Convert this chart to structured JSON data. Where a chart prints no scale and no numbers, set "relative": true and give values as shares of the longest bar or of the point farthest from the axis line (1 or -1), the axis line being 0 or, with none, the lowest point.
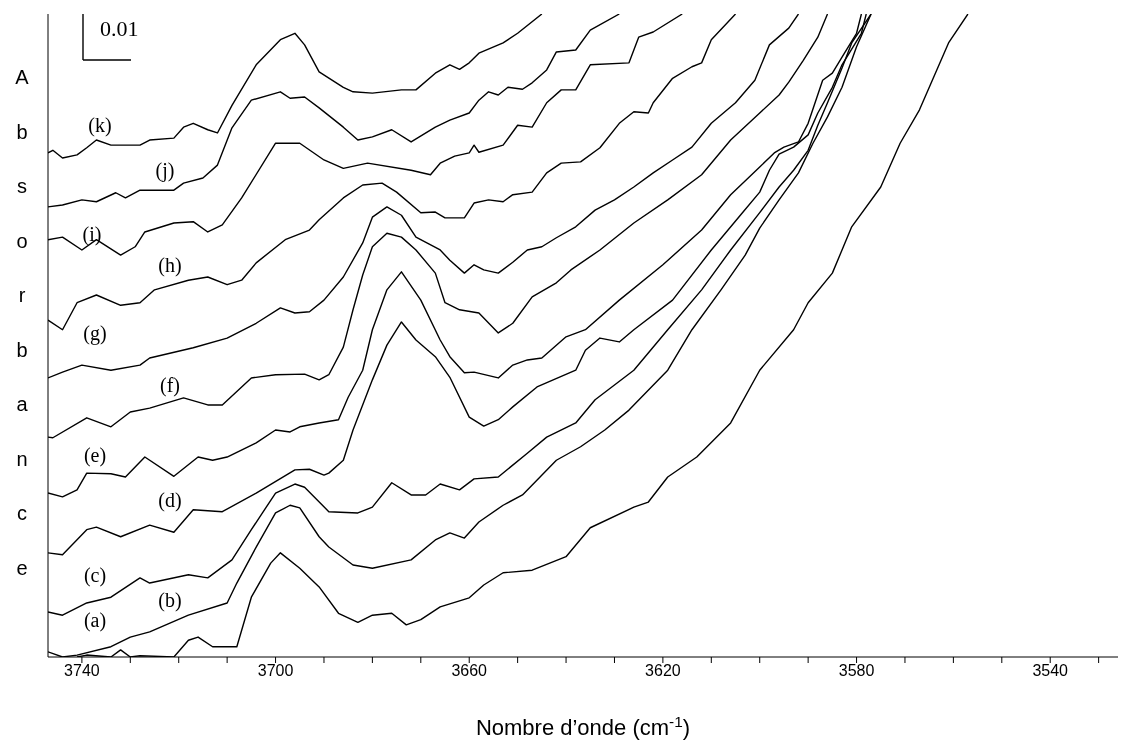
{
  "chart_data": {
    "type": "line",
    "relative": true,
    "xlabel": "Nombre d’onde (cm$^{-1}$)",
    "ylabel": "Absorbance",
    "xlim": [
      3747,
      3526
    ],
    "xticks": [
      3740,
      {
        "value": 3730,
        "label": null
      },
      {
        "value": 3720,
        "label": null
      },
      {
        "value": 3710,
        "label": null
      },
      3700,
      {
        "value": 3690,
        "label": null
      },
      {
        "value": 3680,
        "label": null
      },
      {
        "value": 3670,
        "label": null
      },
      3660,
      {
        "value": 3650,
        "label": null
      },
      {
        "value": 3640,
        "label": null
      },
      {
        "value": 3630,
        "label": null
      },
      3620,
      {
        "value": 3610,
        "label": null
      },
      {
        "value": 3600,
        "label": null
      },
      {
        "value": 3590,
        "label": null
      },
      3580,
      {
        "value": 3570,
        "label": null
      },
      {
        "value": 3560,
        "label": null
      },
      {
        "value": 3550,
        "label": null
      },
      3540,
      {
        "value": 3530,
        "label": null
      }
    ],
    "line_style": "solid",
    "series": [
      {
        "color": "#000000",
        "x": [
          3741,
          3739,
          3734,
          3732,
          3730,
          3728,
          3721,
          3718,
          3716,
          3713,
          3708,
          3705,
          3701,
          3699,
          3695,
          3691,
          3687,
          3683,
          3680,
          3676,
          3673,
          3670,
          3666,
          3660,
          3657,
          3653,
          3647,
          3640,
          3635,
          3626,
          3623,
          3619,
          3613,
          3606,
          3600,
          3593,
          3590,
          3585,
          3581,
          3575,
          3571,
          3567,
          3561,
          3557
        ],
        "values": [
          0,
          0.003,
          0,
          0.011,
          0,
          0.002,
          0,
          0.026,
          0.031,
          0.016,
          0.016,
          0.093,
          0.146,
          0.162,
          0.138,
          0.109,
          0.068,
          0.054,
          0.065,
          0.068,
          0.05,
          0.058,
          0.078,
          0.092,
          0.112,
          0.131,
          0.135,
          0.156,
          0.201,
          0.233,
          0.241,
          0.28,
          0.311,
          0.364,
          0.446,
          0.509,
          0.551,
          0.597,
          0.669,
          0.731,
          0.799,
          0.851,
          0.955,
          1
        ]
      },
      {
        "color": "#000000",
        "x": [
          3747,
          3744,
          3741,
          3734,
          3730,
          3726,
          3718,
          3710,
          3708,
          3704,
          3700,
          3697,
          3695,
          3691,
          3689,
          3684,
          3680,
          3672,
          3667,
          3664,
          3661,
          3658,
          3653,
          3649,
          3642,
          3637,
          3632,
          3627,
          3619,
          3614,
          3608,
          3603,
          3600,
          3596,
          3592,
          3589,
          3586,
          3583,
          3580,
          3577
        ],
        "values": [
          0.008,
          0,
          0.003,
          0.016,
          0.031,
          0.039,
          0.065,
          0.084,
          0.115,
          0.171,
          0.224,
          0.236,
          0.232,
          0.187,
          0.171,
          0.143,
          0.138,
          0.151,
          0.182,
          0.193,
          0.185,
          0.21,
          0.236,
          0.252,
          0.306,
          0.327,
          0.353,
          0.384,
          0.446,
          0.509,
          0.571,
          0.625,
          0.667,
          0.711,
          0.753,
          0.799,
          0.84,
          0.886,
          0.949,
          1
        ]
      },
      {
        "color": "#000000",
        "x": [
          3747,
          3744,
          3739,
          3734,
          3728,
          3726,
          3718,
          3714,
          3709,
          3705,
          3700,
          3696,
          3694,
          3689,
          3683,
          3680,
          3676,
          3672,
          3669,
          3666,
          3662,
          3659,
          3654,
          3648,
          3644,
          3638,
          3634,
          3626,
          3619,
          3612,
          3606,
          3600,
          3596,
          3593,
          3590,
          3588,
          3586,
          3583,
          3581,
          3577
        ],
        "values": [
          0.07,
          0.065,
          0.084,
          0.093,
          0.123,
          0.115,
          0.128,
          0.123,
          0.151,
          0.198,
          0.255,
          0.269,
          0.264,
          0.226,
          0.224,
          0.233,
          0.271,
          0.252,
          0.252,
          0.269,
          0.26,
          0.277,
          0.28,
          0.317,
          0.342,
          0.364,
          0.4,
          0.446,
          0.509,
          0.571,
          0.633,
          0.691,
          0.731,
          0.757,
          0.788,
          0.827,
          0.862,
          0.916,
          0.955,
          1
        ]
      },
      {
        "color": "#000000",
        "x": [
          3747,
          3744,
          3739,
          3737,
          3732,
          3726,
          3721,
          3717,
          3711,
          3704,
          3696,
          3693,
          3690,
          3689,
          3686,
          3684,
          3680,
          3677,
          3674,
          3671,
          3667,
          3664,
          3660,
          3657,
          3654,
          3651,
          3646,
          3638,
          3636,
          3633,
          3629,
          3626,
          3618,
          3610,
          3604,
          3600,
          3598,
          3596,
          3593,
          3590,
          3588,
          3585,
          3583,
          3579,
          3578
        ],
        "values": [
          0.162,
          0.159,
          0.198,
          0.202,
          0.187,
          0.205,
          0.194,
          0.229,
          0.226,
          0.255,
          0.291,
          0.292,
          0.283,
          0.286,
          0.306,
          0.353,
          0.431,
          0.485,
          0.521,
          0.493,
          0.467,
          0.435,
          0.373,
          0.359,
          0.369,
          0.389,
          0.42,
          0.446,
          0.477,
          0.496,
          0.49,
          0.509,
          0.555,
          0.633,
          0.687,
          0.723,
          0.757,
          0.782,
          0.793,
          0.812,
          0.846,
          0.886,
          0.921,
          0.97,
          1
        ]
      },
      {
        "color": "#000000",
        "x": [
          3747,
          3744,
          3741,
          3739,
          3734,
          3731,
          3727,
          3721,
          3716,
          3713,
          3710,
          3704,
          3700,
          3697,
          3695,
          3691,
          3687,
          3685,
          3682,
          3680,
          3677,
          3674,
          3670,
          3666,
          3664,
          3661,
          3659,
          3654,
          3651,
          3648,
          3645,
          3640,
          3636,
          3629,
          3620,
          3612,
          3606,
          3600,
          3597,
          3595,
          3592,
          3590,
          3587,
          3585,
          3583,
          3580,
          3579
        ],
        "values": [
          0.255,
          0.249,
          0.26,
          0.286,
          0.285,
          0.28,
          0.311,
          0.281,
          0.311,
          0.306,
          0.311,
          0.333,
          0.353,
          0.35,
          0.358,
          0.364,
          0.369,
          0.404,
          0.446,
          0.509,
          0.571,
          0.599,
          0.555,
          0.493,
          0.467,
          0.442,
          0.443,
          0.434,
          0.454,
          0.462,
          0.465,
          0.498,
          0.509,
          0.555,
          0.61,
          0.664,
          0.719,
          0.762,
          0.784,
          0.793,
          0.801,
          0.83,
          0.897,
          0.908,
          0.933,
          0.97,
          1
        ]
      },
      {
        "color": "#000000",
        "x": [
          3747,
          3746,
          3739,
          3734,
          3730,
          3726,
          3719,
          3714,
          3711,
          3705,
          3700,
          3694,
          3691,
          3689,
          3686,
          3684,
          3682,
          3680,
          3677,
          3674,
          3671,
          3667,
          3665,
          3662,
          3658,
          3654,
          3651,
          3647,
          3642,
          3639,
          3633,
          3626,
          3619,
          3612,
          3606,
          3600,
          3596,
          3594,
          3591,
          3588,
          3586
        ],
        "values": [
          0.342,
          0.341,
          0.372,
          0.358,
          0.381,
          0.387,
          0.403,
          0.392,
          0.392,
          0.434,
          0.439,
          0.44,
          0.431,
          0.439,
          0.482,
          0.54,
          0.594,
          0.638,
          0.659,
          0.653,
          0.633,
          0.597,
          0.551,
          0.54,
          0.535,
          0.504,
          0.519,
          0.56,
          0.582,
          0.602,
          0.633,
          0.675,
          0.711,
          0.75,
          0.804,
          0.846,
          0.874,
          0.894,
          0.928,
          0.964,
          1
        ]
      },
      {
        "color": "#000000",
        "x": [
          3747,
          3744,
          3740,
          3734,
          3728,
          3726,
          3717,
          3710,
          3704,
          3699,
          3696,
          3693,
          3690,
          3686,
          3682,
          3680,
          3677,
          3674,
          3671,
          3666,
          3664,
          3661,
          3659,
          3657,
          3654,
          3651,
          3648,
          3645,
          3642,
          3638,
          3634,
          3630,
          3626,
          3622,
          3618,
          3614,
          3610,
          3605,
          3601,
          3598,
          3594,
          3592
        ],
        "values": [
          0.434,
          0.443,
          0.454,
          0.446,
          0.454,
          0.465,
          0.481,
          0.496,
          0.519,
          0.543,
          0.535,
          0.537,
          0.555,
          0.591,
          0.644,
          0.684,
          0.7,
          0.687,
          0.653,
          0.633,
          0.617,
          0.597,
          0.61,
          0.602,
          0.597,
          0.614,
          0.633,
          0.638,
          0.652,
          0.669,
          0.695,
          0.711,
          0.731,
          0.753,
          0.773,
          0.793,
          0.83,
          0.862,
          0.897,
          0.952,
          0.978,
          1
        ]
      },
      {
        "color": "#000000",
        "x": [
          3747,
          3744,
          3741,
          3737,
          3732,
          3728,
          3725,
          3718,
          3714,
          3710,
          3707,
          3704,
          3698,
          3693,
          3691,
          3686,
          3682,
          3678,
          3675,
          3670,
          3667,
          3665,
          3661,
          3659,
          3656,
          3653,
          3651,
          3647,
          3644,
          3641,
          3637,
          3633,
          3629,
          3626,
          3623,
          3622,
          3618,
          3614,
          3612,
          3610,
          3605
        ],
        "values": [
          0.524,
          0.509,
          0.551,
          0.563,
          0.547,
          0.551,
          0.571,
          0.586,
          0.591,
          0.579,
          0.586,
          0.613,
          0.649,
          0.664,
          0.68,
          0.714,
          0.734,
          0.737,
          0.723,
          0.691,
          0.692,
          0.683,
          0.683,
          0.706,
          0.711,
          0.708,
          0.719,
          0.723,
          0.753,
          0.768,
          0.77,
          0.792,
          0.83,
          0.848,
          0.846,
          0.862,
          0.9,
          0.918,
          0.924,
          0.96,
          1
        ]
      },
      {
        "color": "#000000",
        "x": [
          3747,
          3744,
          3740,
          3737,
          3732,
          3729,
          3727,
          3721,
          3717,
          3714,
          3711,
          3707,
          3700,
          3695,
          3690,
          3686,
          3681,
          3672,
          3668,
          3666,
          3663,
          3660,
          3659,
          3658,
          3653,
          3650,
          3647,
          3644,
          3641,
          3638,
          3635,
          3627,
          3625,
          3622,
          3616
        ],
        "values": [
          0.649,
          0.653,
          0.633,
          0.649,
          0.625,
          0.638,
          0.661,
          0.675,
          0.677,
          0.661,
          0.672,
          0.714,
          0.799,
          0.799,
          0.773,
          0.76,
          0.768,
          0.757,
          0.75,
          0.768,
          0.779,
          0.784,
          0.796,
          0.785,
          0.796,
          0.827,
          0.824,
          0.862,
          0.882,
          0.882,
          0.921,
          0.924,
          0.964,
          0.972,
          1
        ]
      },
      {
        "color": "#000000",
        "x": [
          3747,
          3744,
          3740,
          3737,
          3733,
          3731,
          3728,
          3721,
          3719,
          3715,
          3712,
          3709,
          3705,
          3699,
          3697,
          3694,
          3691,
          3686,
          3683,
          3680,
          3676,
          3672,
          3667,
          3664,
          3660,
          3658,
          3656,
          3654,
          3652,
          3649,
          3647,
          3644,
          3642,
          3638,
          3635,
          3629
        ],
        "values": [
          0.7,
          0.703,
          0.711,
          0.708,
          0.722,
          0.714,
          0.726,
          0.726,
          0.737,
          0.745,
          0.765,
          0.823,
          0.866,
          0.879,
          0.869,
          0.871,
          0.854,
          0.824,
          0.804,
          0.809,
          0.82,
          0.801,
          0.824,
          0.835,
          0.846,
          0.866,
          0.879,
          0.874,
          0.886,
          0.883,
          0.893,
          0.913,
          0.941,
          0.944,
          0.975,
          1
        ]
      },
      {
        "color": "#000000",
        "x": [
          3747,
          3746,
          3744,
          3741,
          3739,
          3737,
          3734,
          3728,
          3726,
          3721,
          3719,
          3717,
          3714,
          3712,
          3709,
          3704,
          3699,
          3696,
          3694,
          3691,
          3686,
          3684,
          3680,
          3674,
          3671,
          3667,
          3664,
          3662,
          3660,
          3658,
          3653,
          3650,
          3645
        ],
        "values": [
          0.784,
          0.788,
          0.776,
          0.781,
          0.792,
          0.804,
          0.796,
          0.796,
          0.804,
          0.807,
          0.824,
          0.83,
          0.82,
          0.815,
          0.858,
          0.921,
          0.96,
          0.97,
          0.952,
          0.91,
          0.886,
          0.879,
          0.877,
          0.882,
          0.882,
          0.908,
          0.921,
          0.914,
          0.924,
          0.939,
          0.955,
          0.97,
          1
        ]
      }
    ],
    "annotations": [
      "0.01",
      "(a)",
      "(b)",
      "(c)",
      "(d)",
      "(e)",
      "(f)",
      "(g)",
      "(h)",
      "(i)",
      "(j)",
      "(k)"
    ]
  }
}
